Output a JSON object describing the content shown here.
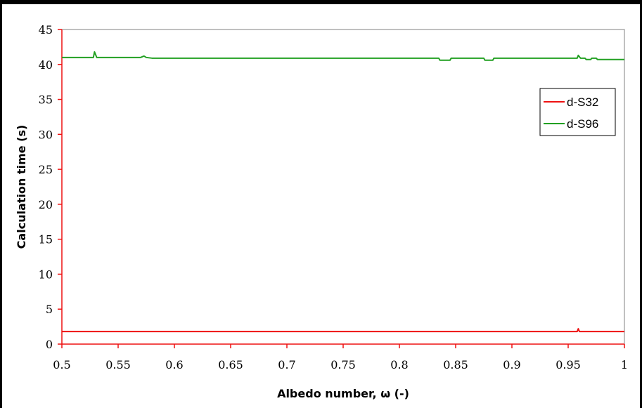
{
  "chart_data": {
    "type": "line",
    "xlabel": "Albedo number, ω (-)",
    "ylabel": "Calculation time (s)",
    "xlim": [
      0.5,
      1
    ],
    "ylim": [
      0,
      45
    ],
    "x_ticks": [
      "0.5",
      "0.55",
      "0.6",
      "0.65",
      "0.7",
      "0.75",
      "0.8",
      "0.85",
      "0.9",
      "0.95",
      "1"
    ],
    "y_ticks": [
      "0",
      "5",
      "10",
      "15",
      "20",
      "25",
      "30",
      "35",
      "40",
      "45"
    ],
    "grid": false,
    "legend_position": "top-right",
    "series": [
      {
        "name": "d-S32",
        "color": "#ee1111",
        "x": [
          0.5,
          0.53,
          0.56,
          0.6,
          0.65,
          0.7,
          0.75,
          0.8,
          0.85,
          0.9,
          0.95,
          0.958,
          0.959,
          0.96,
          0.97,
          1.0
        ],
        "y": [
          1.8,
          1.8,
          1.8,
          1.8,
          1.8,
          1.8,
          1.8,
          1.8,
          1.8,
          1.8,
          1.8,
          1.8,
          2.2,
          1.8,
          1.8,
          1.8
        ]
      },
      {
        "name": "d-S96",
        "color": "#22a022",
        "x": [
          0.5,
          0.51,
          0.52,
          0.528,
          0.529,
          0.531,
          0.54,
          0.55,
          0.56,
          0.57,
          0.573,
          0.575,
          0.58,
          0.6,
          0.62,
          0.65,
          0.7,
          0.75,
          0.8,
          0.835,
          0.836,
          0.845,
          0.846,
          0.85,
          0.875,
          0.876,
          0.883,
          0.884,
          0.9,
          0.95,
          0.958,
          0.959,
          0.961,
          0.965,
          0.966,
          0.97,
          0.971,
          0.975,
          0.976,
          1.0
        ],
        "y": [
          41.0,
          41.0,
          41.0,
          41.0,
          41.8,
          41.0,
          41.0,
          41.0,
          41.0,
          41.0,
          41.2,
          41.0,
          40.9,
          40.9,
          40.9,
          40.9,
          40.9,
          40.9,
          40.9,
          40.9,
          40.6,
          40.6,
          40.9,
          40.9,
          40.9,
          40.6,
          40.6,
          40.9,
          40.9,
          40.9,
          40.9,
          41.3,
          40.9,
          40.9,
          40.7,
          40.7,
          40.9,
          40.9,
          40.7,
          40.7
        ]
      }
    ]
  }
}
